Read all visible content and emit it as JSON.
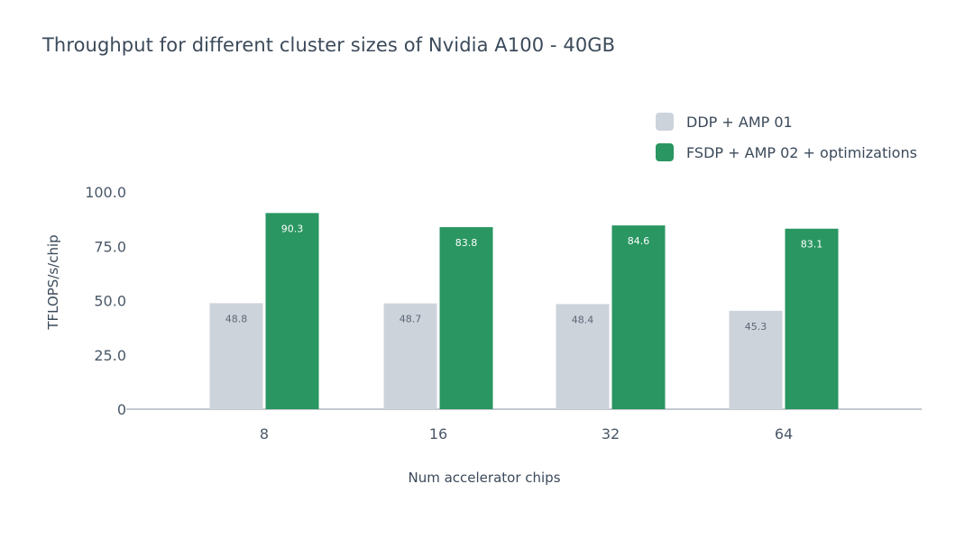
{
  "chart_data": {
    "type": "bar",
    "title": "Throughput for different cluster sizes of Nvidia A100 - 40GB",
    "xlabel": "Num accelerator chips",
    "ylabel": "TFLOPS/s/chip",
    "categories": [
      "8",
      "16",
      "32",
      "64"
    ],
    "ylim": [
      0,
      100
    ],
    "yticks": [
      0,
      25,
      50,
      75,
      100
    ],
    "ytick_labels": [
      "0",
      "25.0",
      "50.0",
      "75.0",
      "100.0"
    ],
    "legend_position": "top-right",
    "series": [
      {
        "name": "DDP + AMP 01",
        "color": "#cdd3db",
        "label_color": "#5b6775",
        "values": [
          48.8,
          48.7,
          48.4,
          45.3
        ],
        "labels": [
          "48.8",
          "48.7",
          "48.4",
          "45.3"
        ]
      },
      {
        "name": "FSDP + AMP 02 + optimizations",
        "color": "#2a9661",
        "label_color": "#ffffff",
        "values": [
          90.3,
          83.8,
          84.6,
          83.1
        ],
        "labels": [
          "90.3",
          "83.8",
          "84.6",
          "83.1"
        ]
      }
    ]
  }
}
